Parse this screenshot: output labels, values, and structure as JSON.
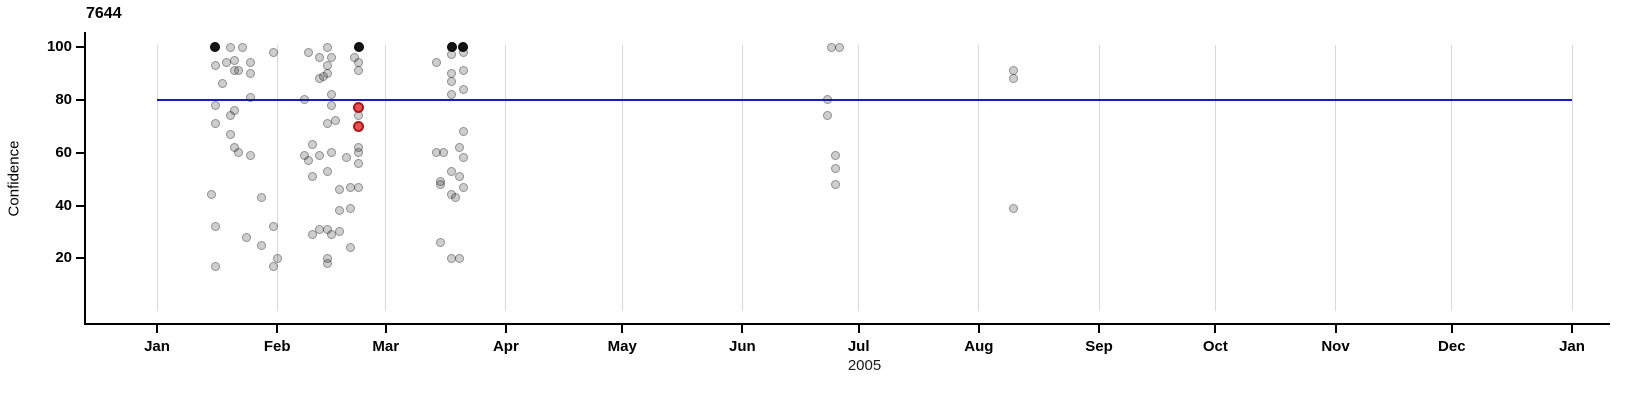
{
  "title": "7644",
  "y_axis": {
    "label": "Confidence",
    "ticks": [
      100,
      80,
      60,
      40,
      20
    ]
  },
  "x_axis": {
    "year": "2005",
    "tick_labels": [
      "Jan",
      "Feb",
      "Mar",
      "Apr",
      "May",
      "Jun",
      "Jul",
      "Aug",
      "Sep",
      "Oct",
      "Nov",
      "Dec",
      "Jan"
    ],
    "tick_dates": [
      "2005-01-01",
      "2005-02-01",
      "2005-03-01",
      "2005-04-01",
      "2005-05-01",
      "2005-06-01",
      "2005-07-01",
      "2005-08-01",
      "2005-09-01",
      "2005-10-01",
      "2005-11-01",
      "2005-12-01",
      "2006-01-01"
    ]
  },
  "colors": {
    "reference_line": "#1a1ac8",
    "gridline": "#d8d8d8",
    "axis": "#000000",
    "point_gray": "#c8c8c8",
    "point_black": "#111111",
    "point_red": "#e12020"
  },
  "chart_data": {
    "type": "scatter",
    "title": "7644",
    "xlabel": "2005",
    "ylabel": "Confidence",
    "x_range": [
      "2005-01-01",
      "2006-01-01"
    ],
    "ylim": [
      0,
      110
    ],
    "grid": "vertical-months",
    "reference_line_y": 80,
    "point_format": [
      "date",
      "confidence",
      "color(g=gray,b=black,r=red)"
    ],
    "points": [
      [
        "2005-01-16",
        100,
        "b"
      ],
      [
        "2005-01-20",
        100,
        "g"
      ],
      [
        "2005-01-23",
        100,
        "g"
      ],
      [
        "2005-01-31",
        98,
        "g"
      ],
      [
        "2005-01-21",
        95,
        "g"
      ],
      [
        "2005-01-25",
        94,
        "g"
      ],
      [
        "2005-01-16",
        93,
        "g"
      ],
      [
        "2005-01-19",
        94,
        "g"
      ],
      [
        "2005-01-21",
        91,
        "g"
      ],
      [
        "2005-01-22",
        91,
        "g"
      ],
      [
        "2005-01-25",
        90,
        "g"
      ],
      [
        "2005-01-18",
        86,
        "g"
      ],
      [
        "2005-01-25",
        81,
        "g"
      ],
      [
        "2005-01-16",
        78,
        "g"
      ],
      [
        "2005-01-21",
        76,
        "g"
      ],
      [
        "2005-01-20",
        74,
        "g"
      ],
      [
        "2005-01-16",
        71,
        "g"
      ],
      [
        "2005-01-20",
        67,
        "g"
      ],
      [
        "2005-01-21",
        62,
        "g"
      ],
      [
        "2005-01-22",
        60,
        "g"
      ],
      [
        "2005-01-25",
        59,
        "g"
      ],
      [
        "2005-01-15",
        44,
        "g"
      ],
      [
        "2005-01-28",
        43,
        "g"
      ],
      [
        "2005-01-16",
        32,
        "g"
      ],
      [
        "2005-01-24",
        28,
        "g"
      ],
      [
        "2005-01-31",
        32,
        "g"
      ],
      [
        "2005-01-28",
        25,
        "g"
      ],
      [
        "2005-02-01",
        20,
        "g"
      ],
      [
        "2005-01-31",
        17,
        "g"
      ],
      [
        "2005-01-16",
        17,
        "g"
      ],
      [
        "2005-02-09",
        98,
        "g"
      ],
      [
        "2005-02-14",
        100,
        "g"
      ],
      [
        "2005-02-12",
        96,
        "g"
      ],
      [
        "2005-02-15",
        96,
        "g"
      ],
      [
        "2005-02-14",
        93,
        "g"
      ],
      [
        "2005-02-14",
        90,
        "g"
      ],
      [
        "2005-02-13",
        89,
        "g"
      ],
      [
        "2005-02-12",
        88,
        "g"
      ],
      [
        "2005-02-15",
        82,
        "g"
      ],
      [
        "2005-02-08",
        80,
        "g"
      ],
      [
        "2005-02-15",
        78,
        "g"
      ],
      [
        "2005-02-14",
        71,
        "g"
      ],
      [
        "2005-02-16",
        72,
        "g"
      ],
      [
        "2005-02-10",
        63,
        "g"
      ],
      [
        "2005-02-08",
        59,
        "g"
      ],
      [
        "2005-02-09",
        57,
        "g"
      ],
      [
        "2005-02-12",
        59,
        "g"
      ],
      [
        "2005-02-15",
        60,
        "g"
      ],
      [
        "2005-02-19",
        58,
        "g"
      ],
      [
        "2005-02-22",
        62,
        "g"
      ],
      [
        "2005-02-22",
        60,
        "g"
      ],
      [
        "2005-02-22",
        56,
        "g"
      ],
      [
        "2005-02-10",
        51,
        "g"
      ],
      [
        "2005-02-14",
        53,
        "g"
      ],
      [
        "2005-02-17",
        46,
        "g"
      ],
      [
        "2005-02-20",
        47,
        "g"
      ],
      [
        "2005-02-22",
        47,
        "g"
      ],
      [
        "2005-02-17",
        38,
        "g"
      ],
      [
        "2005-02-20",
        39,
        "g"
      ],
      [
        "2005-02-12",
        31,
        "g"
      ],
      [
        "2005-02-10",
        29,
        "g"
      ],
      [
        "2005-02-14",
        31,
        "g"
      ],
      [
        "2005-02-15",
        29,
        "g"
      ],
      [
        "2005-02-17",
        30,
        "g"
      ],
      [
        "2005-02-20",
        24,
        "g"
      ],
      [
        "2005-02-14",
        20,
        "g"
      ],
      [
        "2005-02-14",
        18,
        "g"
      ],
      [
        "2005-02-22",
        100,
        "b"
      ],
      [
        "2005-02-21",
        96,
        "g"
      ],
      [
        "2005-02-22",
        94,
        "g"
      ],
      [
        "2005-02-22",
        91,
        "g"
      ],
      [
        "2005-02-22",
        77,
        "r"
      ],
      [
        "2005-02-22",
        74,
        "g"
      ],
      [
        "2005-02-22",
        70,
        "r"
      ],
      [
        "2005-03-18",
        100,
        "b"
      ],
      [
        "2005-03-21",
        100,
        "b"
      ],
      [
        "2005-03-18",
        97,
        "g"
      ],
      [
        "2005-03-21",
        98,
        "g"
      ],
      [
        "2005-03-14",
        94,
        "g"
      ],
      [
        "2005-03-21",
        91,
        "g"
      ],
      [
        "2005-03-18",
        90,
        "g"
      ],
      [
        "2005-03-18",
        87,
        "g"
      ],
      [
        "2005-03-21",
        84,
        "g"
      ],
      [
        "2005-03-18",
        82,
        "g"
      ],
      [
        "2005-03-21",
        68,
        "g"
      ],
      [
        "2005-03-14",
        60,
        "g"
      ],
      [
        "2005-03-16",
        60,
        "g"
      ],
      [
        "2005-03-20",
        62,
        "g"
      ],
      [
        "2005-03-21",
        58,
        "g"
      ],
      [
        "2005-03-18",
        53,
        "g"
      ],
      [
        "2005-03-20",
        51,
        "g"
      ],
      [
        "2005-03-15",
        49,
        "g"
      ],
      [
        "2005-03-15",
        48,
        "g"
      ],
      [
        "2005-03-21",
        47,
        "g"
      ],
      [
        "2005-03-18",
        44,
        "g"
      ],
      [
        "2005-03-19",
        43,
        "g"
      ],
      [
        "2005-03-15",
        26,
        "g"
      ],
      [
        "2005-03-18",
        20,
        "g"
      ],
      [
        "2005-03-20",
        20,
        "g"
      ],
      [
        "2005-06-24",
        100,
        "g"
      ],
      [
        "2005-06-26",
        100,
        "g"
      ],
      [
        "2005-06-23",
        80,
        "g"
      ],
      [
        "2005-06-23",
        74,
        "g"
      ],
      [
        "2005-06-25",
        59,
        "g"
      ],
      [
        "2005-06-25",
        54,
        "g"
      ],
      [
        "2005-06-25",
        48,
        "g"
      ],
      [
        "2005-08-10",
        91,
        "g"
      ],
      [
        "2005-08-10",
        88,
        "g"
      ],
      [
        "2005-08-10",
        39,
        "g"
      ]
    ]
  }
}
